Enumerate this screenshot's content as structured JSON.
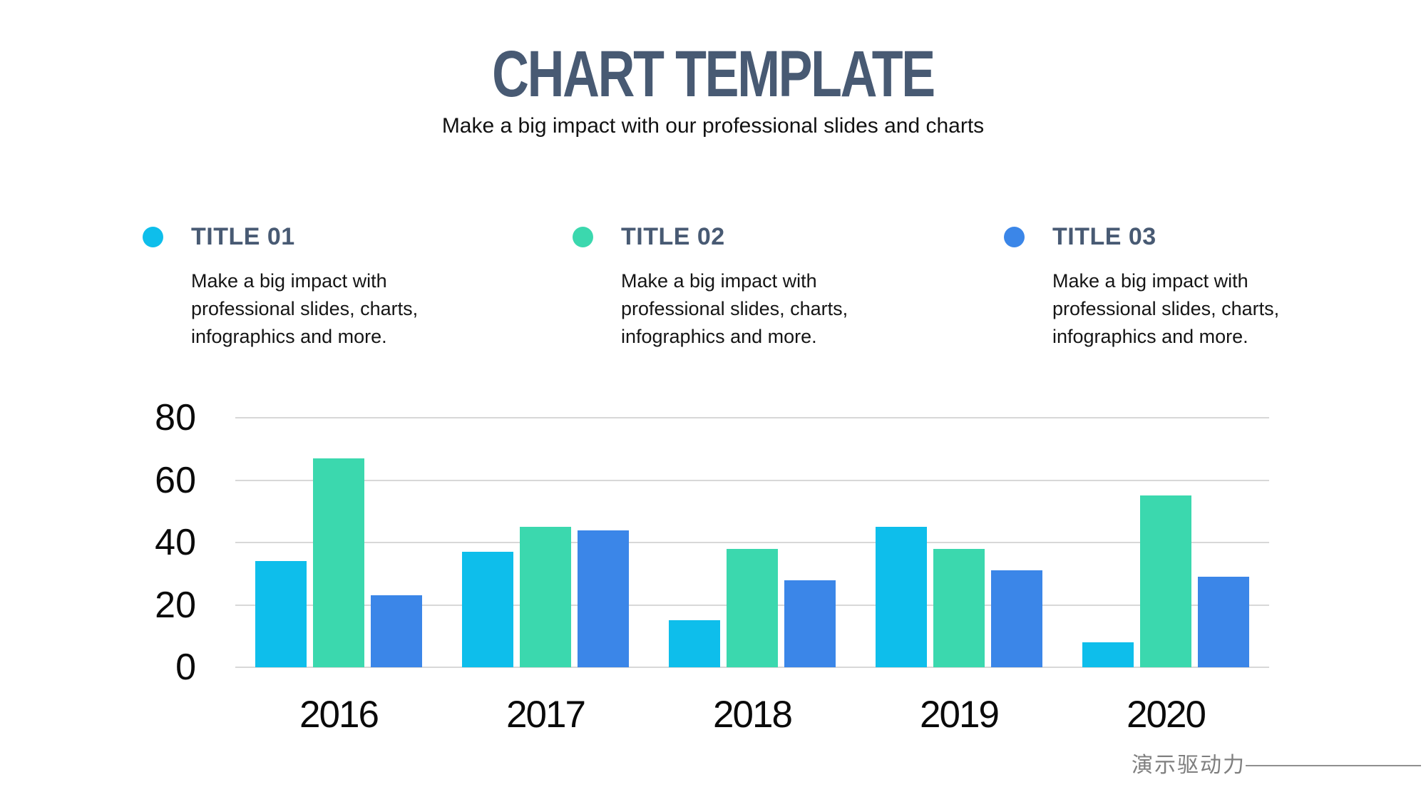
{
  "header": {
    "title": "CHART TEMPLATE",
    "subtitle": "Make a big impact with our professional slides and charts"
  },
  "features": {
    "items": [
      {
        "title": "TITLE 01",
        "dot_color": "#0EBEEB",
        "description": "Make a big impact with professional slides, charts, infographics and more."
      },
      {
        "title": "TITLE 02",
        "dot_color": "#3BD8AE",
        "description": "Make a big impact with professional slides, charts, infographics and more."
      },
      {
        "title": "TITLE 03",
        "dot_color": "#3B86E8",
        "description": "Make a big impact with professional slides, charts, infographics and more."
      }
    ]
  },
  "chart_data": {
    "type": "bar",
    "title": "",
    "xlabel": "",
    "ylabel": "",
    "categories": [
      "2016",
      "2017",
      "2018",
      "2019",
      "2020"
    ],
    "series": [
      {
        "name": "TITLE 01",
        "color": "#0EBEEB",
        "values": [
          34,
          37,
          15,
          45,
          8
        ]
      },
      {
        "name": "TITLE 02",
        "color": "#3BD8AE",
        "values": [
          67,
          45,
          38,
          38,
          55
        ]
      },
      {
        "name": "TITLE 03",
        "color": "#3B86E8",
        "values": [
          23,
          44,
          28,
          31,
          29
        ]
      }
    ],
    "ylim": [
      0,
      80
    ],
    "yticks": [
      0,
      20,
      40,
      60,
      80
    ],
    "grid": true,
    "legend_position": "feature-blocks-above-chart"
  },
  "footer": {
    "watermark": "演示驱动力"
  },
  "colors": {
    "heading": "#485A73",
    "body_text": "#151515",
    "gridline": "#D8D8D8",
    "watermark": "#7F7F7F"
  }
}
